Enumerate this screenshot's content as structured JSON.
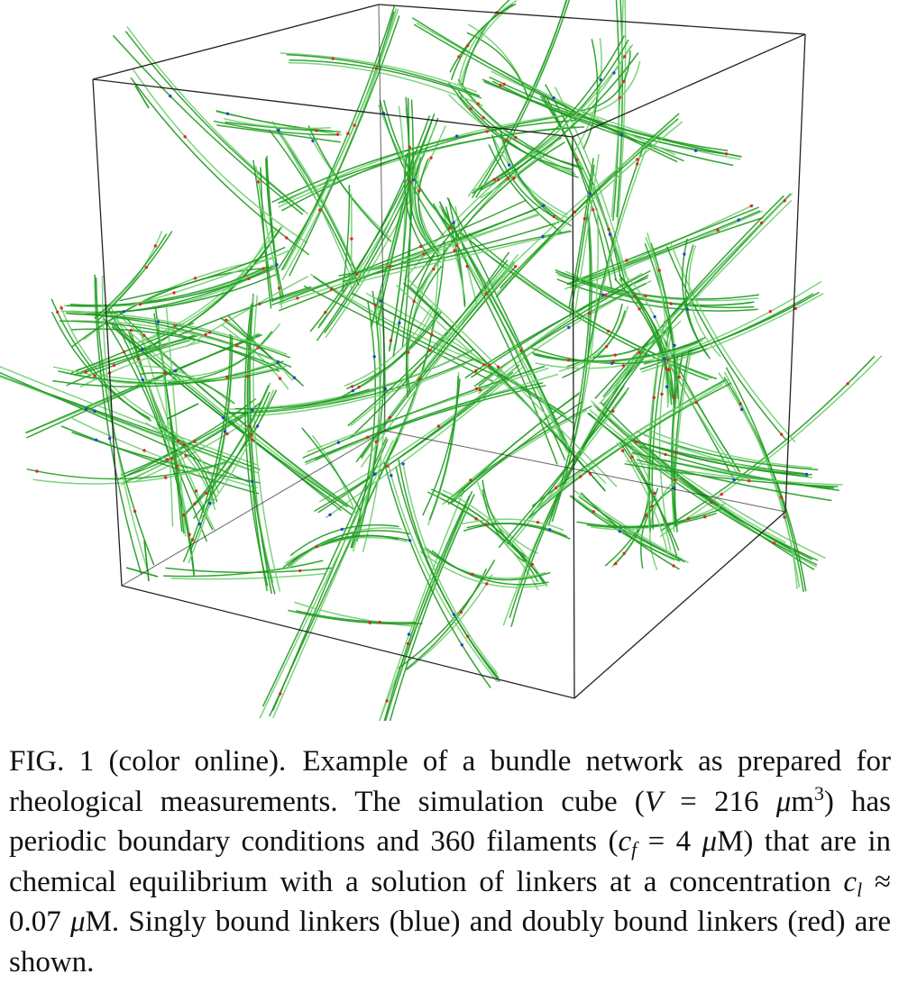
{
  "figure": {
    "colors": {
      "filament": "#1f9a1f",
      "filament_highlight": "#6fcf6f",
      "singly_bound_linker": "#2a3fd6",
      "doubly_bound_linker": "#e0282a",
      "cube_edge": "#222222"
    },
    "filament_count": 360
  },
  "caption": {
    "label": "FIG. 1 (color online).",
    "sentence1": "Example of a bundle network as prepared for rheological measurements.",
    "sentence2_start": "The simulation cube (",
    "volume_symbol": "V",
    "volume_value": " = 216 ",
    "volume_unit_mu": "μ",
    "volume_unit_m": "m",
    "volume_exponent": "3",
    "sentence2_mid": ") has periodic boundary conditions and 360 filaments (",
    "conc_f_symbol": "c",
    "conc_f_sub": "f",
    "conc_f_value": " = 4 ",
    "conc_f_unit_mu": "μ",
    "conc_f_unit": "M",
    "sentence2_end": ") that are in chemical equilibrium with a solution of linkers at a concentration ",
    "conc_l_symbol": "c",
    "conc_l_sub": "l",
    "conc_l_value": " ≈ 0.07 ",
    "conc_l_unit_mu": "μ",
    "conc_l_unit": "M.",
    "sentence3": " Singly bound linkers (blue) and doubly bound linkers (red) are shown."
  }
}
